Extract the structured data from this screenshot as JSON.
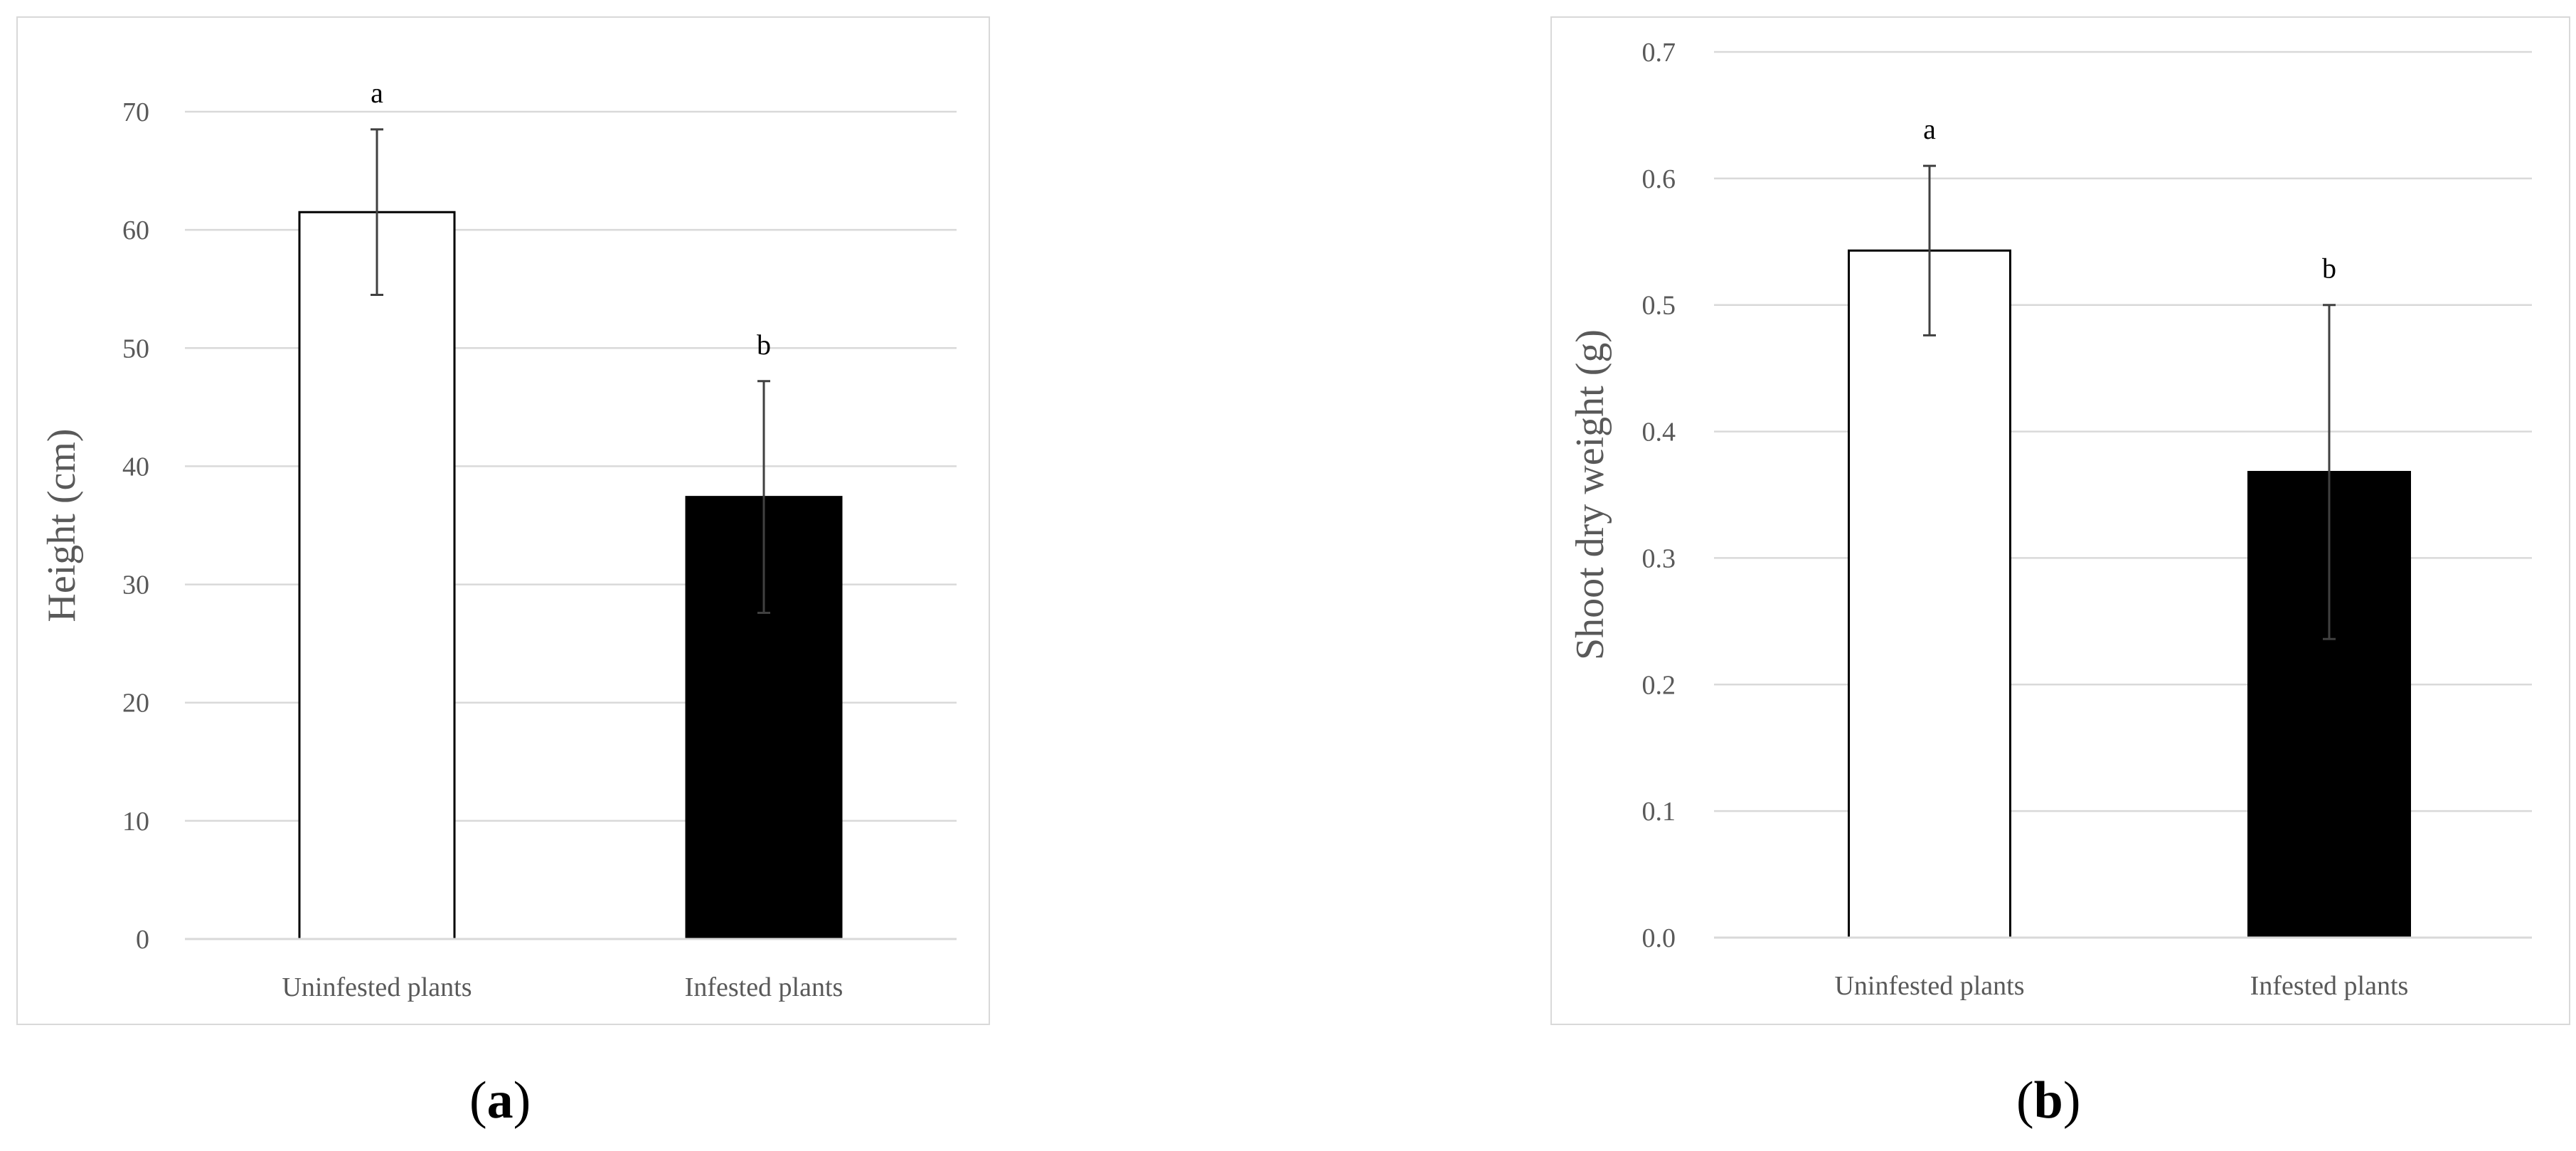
{
  "chart_data": [
    {
      "type": "bar",
      "categories": [
        "Uninfested plants",
        "Infested plants"
      ],
      "values": [
        61.5,
        37.4
      ],
      "error": [
        7.0,
        9.8
      ],
      "significance": [
        "a",
        "b"
      ],
      "bar_colors": [
        "#ffffff",
        "#000000"
      ],
      "ylabel": "Height (cm)",
      "xlabel": "",
      "ylim": [
        0,
        70
      ],
      "yticks": [
        "0",
        "10",
        "20",
        "30",
        "40",
        "50",
        "60",
        "70"
      ],
      "grid": true
    },
    {
      "type": "bar",
      "categories": [
        "Uninfested plants",
        "Infested plants"
      ],
      "values": [
        0.543,
        0.368
      ],
      "error": [
        0.067,
        0.132
      ],
      "significance": [
        "a",
        "b"
      ],
      "bar_colors": [
        "#ffffff",
        "#000000"
      ],
      "ylabel": "Shoot dry weight (g)",
      "xlabel": "",
      "ylim": [
        0,
        0.7
      ],
      "yticks": [
        "0.0",
        "0.1",
        "0.2",
        "0.3",
        "0.4",
        "0.5",
        "0.6",
        "0.7"
      ],
      "grid": true
    }
  ],
  "captions": {
    "a": {
      "open": "(",
      "letter": "a",
      "close": ")"
    },
    "b": {
      "open": "(",
      "letter": "b",
      "close": ")"
    }
  },
  "colors": {
    "grid": "#d9d9d9",
    "axis_text": "#595959",
    "error_bar": "#404040",
    "frame": "#d9d9d9"
  }
}
